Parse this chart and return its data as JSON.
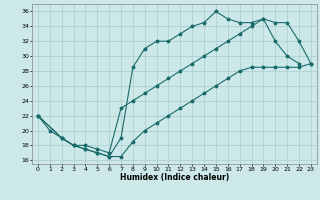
{
  "xlabel": "Humidex (Indice chaleur)",
  "bg_color": "#cce8e8",
  "grid_color": "#aacccc",
  "line_color": "#1a6b6b",
  "xlim": [
    -0.5,
    23.5
  ],
  "ylim": [
    15.5,
    37.0
  ],
  "xticks": [
    0,
    1,
    2,
    3,
    4,
    5,
    6,
    7,
    8,
    9,
    10,
    11,
    12,
    13,
    14,
    15,
    16,
    17,
    18,
    19,
    20,
    21,
    22,
    23
  ],
  "yticks": [
    16,
    18,
    20,
    22,
    24,
    26,
    28,
    30,
    32,
    34,
    36
  ],
  "line1_x": [
    0,
    1,
    2,
    3,
    4,
    5,
    6,
    7,
    8,
    9,
    10,
    11,
    12,
    13,
    14,
    15,
    16,
    17,
    18,
    19,
    20,
    21,
    22
  ],
  "line1_y": [
    22,
    20,
    19,
    18,
    17.5,
    17,
    16.5,
    19,
    28.5,
    31,
    32,
    32,
    33,
    34,
    34.5,
    36,
    35,
    34.5,
    34.5,
    35,
    32,
    30,
    29
  ],
  "line2_x": [
    0,
    2,
    3,
    4,
    5,
    6,
    7,
    8,
    9,
    10,
    11,
    12,
    13,
    14,
    15,
    16,
    17,
    18,
    19,
    20,
    21,
    22,
    23
  ],
  "line2_y": [
    22,
    19,
    18,
    18,
    17.5,
    17,
    23,
    24,
    25,
    26,
    27,
    28,
    29,
    30,
    31,
    32,
    33,
    34,
    35,
    34.5,
    34.5,
    32,
    29
  ],
  "line3_x": [
    0,
    2,
    3,
    4,
    5,
    6,
    7,
    8,
    9,
    10,
    11,
    12,
    13,
    14,
    15,
    16,
    17,
    18,
    19,
    20,
    21,
    22,
    23
  ],
  "line3_y": [
    22,
    19,
    18,
    17.5,
    17,
    16.5,
    16.5,
    18.5,
    20,
    21,
    22,
    23,
    24,
    25,
    26,
    27,
    28,
    28.5,
    28.5,
    28.5,
    28.5,
    28.5,
    29
  ]
}
